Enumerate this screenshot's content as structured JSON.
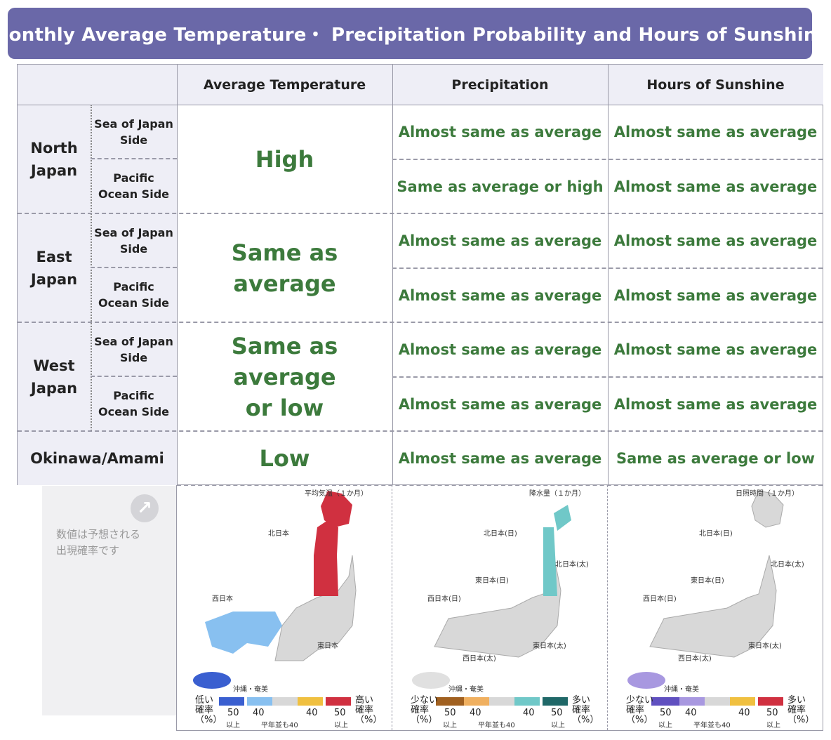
{
  "title": "Monthly Average Temperature・ Precipitation Probability and Hours of Sunshine",
  "headers": {
    "temperature": "Average Temperature",
    "precipitation": "Precipitation",
    "sunshine": "Hours of Sunshine"
  },
  "regions": {
    "north": {
      "name_line1": "North",
      "name_line2": "Japan",
      "side1_line1": "Sea of Japan",
      "side1_line2": "Side",
      "side2_line1": "Pacific",
      "side2_line2": "Ocean Side",
      "temperature": "High",
      "precip1": "Almost same as average",
      "precip2": "Same as average or high",
      "sun1": "Almost same as average",
      "sun2": "Almost same as average"
    },
    "east": {
      "name_line1": "East",
      "name_line2": "Japan",
      "side1_line1": "Sea of Japan",
      "side1_line2": "Side",
      "side2_line1": "Pacific",
      "side2_line2": "Ocean Side",
      "temperature": "Same as average",
      "precip1": "Almost same as average",
      "precip2": "Almost same as average",
      "sun1": "Almost same as average",
      "sun2": "Almost same as average"
    },
    "west": {
      "name_line1": "West",
      "name_line2": "Japan",
      "side1_line1": "Sea of Japan",
      "side1_line2": "Side",
      "side2_line1": "Pacific",
      "side2_line2": "Ocean Side",
      "temperature_line1": "Same as average",
      "temperature_line2": "or low",
      "precip1": "Almost same as average",
      "precip2": "Almost same as average",
      "sun1": "Almost same as average",
      "sun2": "Almost same as average"
    },
    "okinawa": {
      "name": "Okinawa/Amami",
      "temperature": "Low",
      "precip": "Almost same as average",
      "sun": "Same as average or low"
    }
  },
  "note": {
    "line1": "数値は予想される",
    "line2": "出現確率です",
    "arrow_icon": "arrow-up-right-icon"
  },
  "maps": {
    "temperature": {
      "title": "平均気温（１か月）",
      "labels": [
        "北日本",
        "西日本",
        "東日本",
        "沖縄・奄美"
      ],
      "legend_low": "低い",
      "legend_high": "高い",
      "legend_rate": "確率",
      "legend_pct": "（%）",
      "legend_nums": [
        "50",
        "40",
        "40",
        "50"
      ],
      "legend_above": "以上",
      "legend_avg": "平年並も40",
      "colors": {
        "low": "#3a5fd0",
        "low_mid": "#88c0f0",
        "avg": "#d8d8d8",
        "high_mid": "#f0c040",
        "high": "#d03040"
      }
    },
    "precipitation": {
      "title": "降水量（１か月）",
      "labels": [
        "北日本(日)",
        "北日本(太)",
        "東日本(日)",
        "西日本(日)",
        "東日本(太)",
        "西日本(太)",
        "沖縄・奄美"
      ],
      "legend_low": "少ない",
      "legend_high": "多い",
      "legend_rate": "確率",
      "legend_pct": "（%）",
      "legend_nums": [
        "50",
        "40",
        "40",
        "50"
      ],
      "legend_above": "以上",
      "legend_avg": "平年並も40",
      "colors": {
        "low": "#a06020",
        "low_mid": "#f0b060",
        "avg": "#d8d8d8",
        "high_mid": "#70c8c8",
        "high": "#206868"
      }
    },
    "sunshine": {
      "title": "日照時間（１か月）",
      "labels": [
        "北日本(日)",
        "北日本(太)",
        "東日本(日)",
        "西日本(日)",
        "東日本(太)",
        "西日本(太)",
        "沖縄・奄美"
      ],
      "legend_low": "少ない",
      "legend_high": "多い",
      "legend_rate": "確率",
      "legend_pct": "（%）",
      "legend_nums": [
        "50",
        "40",
        "40",
        "50"
      ],
      "legend_above": "以上",
      "legend_avg": "平年並も40",
      "colors": {
        "low": "#6050c0",
        "low_mid": "#a898e0",
        "avg": "#d8d8d8",
        "high_mid": "#f0c040",
        "high": "#d03040"
      }
    }
  }
}
